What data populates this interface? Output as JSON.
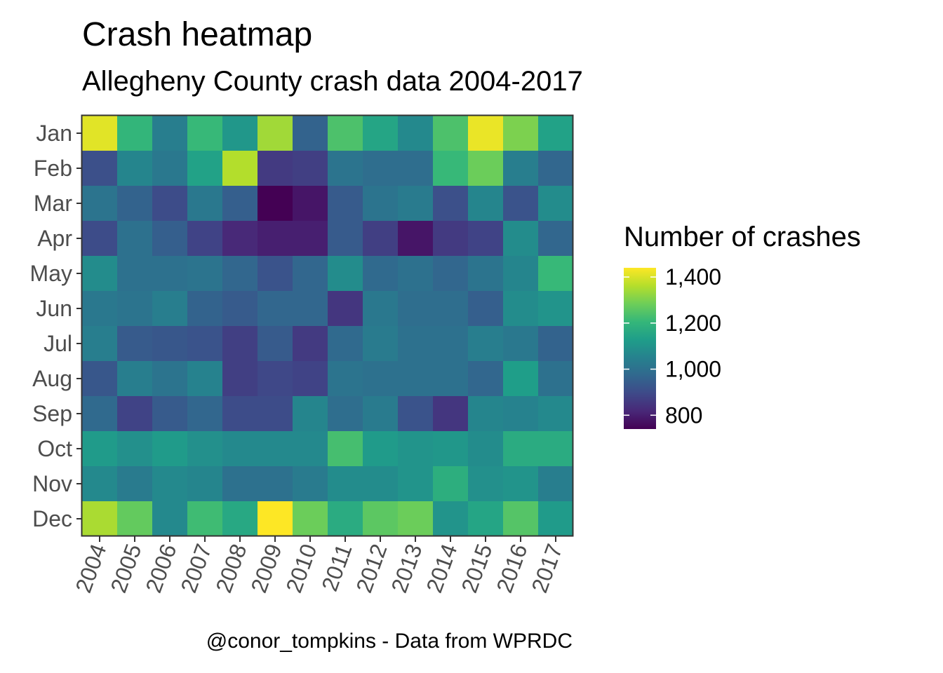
{
  "chart_data": {
    "type": "heatmap",
    "title": "Crash heatmap",
    "subtitle": "Allegheny County crash data 2004-2017",
    "caption": "@conor_tompkins - Data from WPRDC",
    "x_categories": [
      "2004",
      "2005",
      "2006",
      "2007",
      "2008",
      "2009",
      "2010",
      "2011",
      "2012",
      "2013",
      "2014",
      "2015",
      "2016",
      "2017"
    ],
    "y_categories": [
      "Jan",
      "Feb",
      "Mar",
      "Apr",
      "May",
      "Jun",
      "Jul",
      "Aug",
      "Sep",
      "Oct",
      "Nov",
      "Dec"
    ],
    "values": [
      [
        1410,
        1200,
        1040,
        1210,
        1110,
        1340,
        960,
        1240,
        1150,
        1070,
        1240,
        1420,
        1300,
        1140
      ],
      [
        910,
        1060,
        1020,
        1140,
        1360,
        860,
        870,
        1010,
        990,
        990,
        1210,
        1280,
        1040,
        970
      ],
      [
        1010,
        960,
        900,
        1020,
        950,
        740,
        780,
        940,
        1010,
        1030,
        910,
        1060,
        920,
        1080
      ],
      [
        900,
        1000,
        950,
        880,
        820,
        800,
        800,
        940,
        870,
        780,
        860,
        880,
        1080,
        970
      ],
      [
        1080,
        1000,
        1000,
        1010,
        970,
        920,
        970,
        1080,
        980,
        1000,
        970,
        1010,
        1060,
        1210
      ],
      [
        1020,
        1010,
        1040,
        960,
        940,
        970,
        970,
        850,
        1020,
        990,
        990,
        950,
        1080,
        1100
      ],
      [
        1040,
        940,
        930,
        920,
        870,
        940,
        860,
        980,
        1030,
        1000,
        1000,
        1040,
        1020,
        960
      ],
      [
        930,
        1040,
        1010,
        1050,
        870,
        890,
        880,
        1010,
        1000,
        1000,
        1000,
        970,
        1130,
        1000
      ],
      [
        980,
        880,
        940,
        970,
        900,
        900,
        1060,
        990,
        1030,
        920,
        850,
        1060,
        1050,
        1070
      ],
      [
        1120,
        1090,
        1120,
        1090,
        1070,
        1070,
        1070,
        1230,
        1120,
        1100,
        1110,
        1080,
        1170,
        1170
      ],
      [
        1070,
        1030,
        1070,
        1060,
        1000,
        1000,
        1030,
        1080,
        1080,
        1100,
        1180,
        1090,
        1100,
        1040
      ],
      [
        1350,
        1270,
        1070,
        1220,
        1160,
        1440,
        1280,
        1170,
        1260,
        1280,
        1100,
        1150,
        1250,
        1120
      ]
    ],
    "legend": {
      "title": "Number of crashes",
      "placement": "right",
      "breaks": [
        800,
        1000,
        1200,
        1400
      ],
      "break_labels": [
        "800",
        "1,000",
        "1,200",
        "1,400"
      ],
      "min": 740,
      "max": 1440
    },
    "colormap": "viridis",
    "colors": [
      "#440154",
      "#482878",
      "#3e4a89",
      "#31688e",
      "#26828e",
      "#1f9e89",
      "#35b779",
      "#6ece58",
      "#b5de2b",
      "#fde725"
    ],
    "grid": false
  }
}
